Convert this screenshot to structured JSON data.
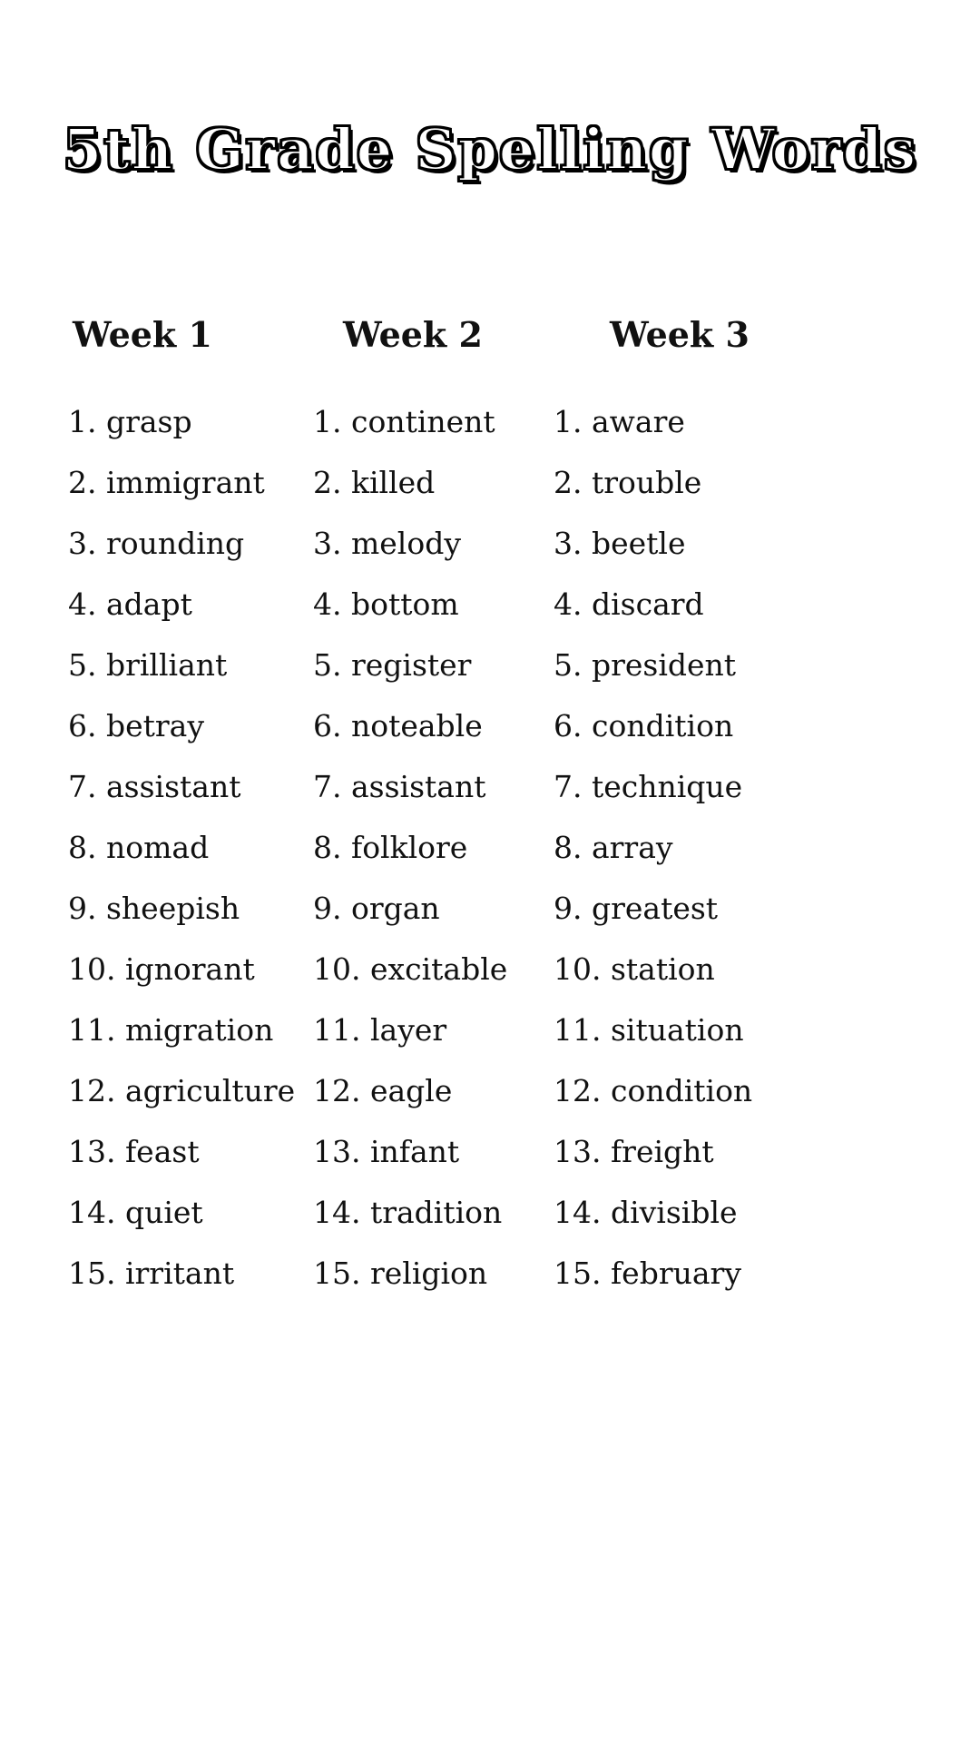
{
  "title": "5th Grade Spelling Words",
  "colors": {
    "text": "#111111",
    "background": "#ffffff"
  },
  "columns": [
    {
      "header": "Week 1",
      "items": [
        "1. grasp",
        "2. immigrant",
        "3. rounding",
        "4. adapt",
        "5. brilliant",
        "6. betray",
        "7. assistant",
        "8. nomad",
        "9. sheepish",
        "10. ignorant",
        "11. migration",
        "12. agriculture",
        "13. feast",
        "14. quiet",
        "15. irritant"
      ]
    },
    {
      "header": "Week 2",
      "items": [
        "1. continent",
        "2. killed",
        "3. melody",
        "4. bottom",
        "5. register",
        "6. noteable",
        "7. assistant",
        "8. folklore",
        "9. organ",
        "10. excitable",
        "11. layer",
        "12. eagle",
        "13. infant",
        "14. tradition",
        "15. religion"
      ]
    },
    {
      "header": "Week 3",
      "items": [
        "1. aware",
        "2. trouble",
        "3. beetle",
        "4. discard",
        "5. president",
        "6. condition",
        "7. technique",
        "8. array",
        "9. greatest",
        "10. station",
        "11. situation",
        "12. condition",
        "13. freight",
        "14. divisible",
        "15. february"
      ]
    }
  ]
}
